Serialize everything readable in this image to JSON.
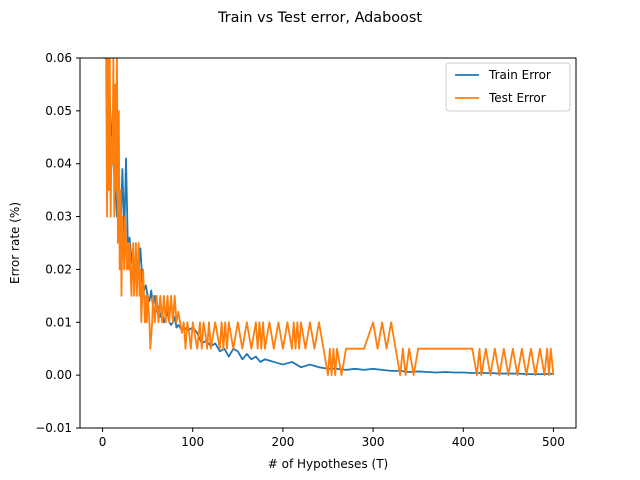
{
  "chart_data": {
    "type": "line",
    "title": "Train vs Test error, Adaboost",
    "xlabel": "# of Hypotheses (T)",
    "ylabel": "Error rate (%)",
    "xlim": [
      -25,
      525
    ],
    "ylim": [
      -0.01,
      0.06
    ],
    "xticks": [
      0,
      100,
      200,
      300,
      400,
      500
    ],
    "yticks": [
      -0.01,
      0.0,
      0.01,
      0.02,
      0.03,
      0.04,
      0.05,
      0.06
    ],
    "ytick_labels": [
      "−0.01",
      "0.00",
      "0.01",
      "0.02",
      "0.03",
      "0.04",
      "0.05",
      "0.06"
    ],
    "grid": false,
    "legend": "top-right",
    "series": [
      {
        "name": "Train Error",
        "color": "#1f77b4",
        "x": [
          1,
          5,
          8,
          10,
          12,
          14,
          16,
          18,
          20,
          22,
          24,
          26,
          28,
          30,
          32,
          34,
          36,
          38,
          40,
          42,
          44,
          46,
          48,
          50,
          52,
          54,
          56,
          58,
          60,
          62,
          64,
          66,
          68,
          70,
          72,
          74,
          76,
          78,
          80,
          82,
          84,
          86,
          88,
          90,
          95,
          100,
          105,
          110,
          115,
          120,
          125,
          130,
          135,
          140,
          145,
          150,
          155,
          160,
          165,
          170,
          175,
          180,
          190,
          200,
          210,
          220,
          230,
          240,
          250,
          260,
          270,
          280,
          290,
          300,
          310,
          320,
          330,
          340,
          350,
          360,
          370,
          380,
          390,
          400,
          410,
          420,
          430,
          440,
          450,
          460,
          470,
          480,
          490,
          500
        ],
        "y": [
          0.06,
          0.06,
          0.052,
          0.045,
          0.04,
          0.036,
          0.03,
          0.033,
          0.028,
          0.039,
          0.026,
          0.041,
          0.025,
          0.026,
          0.022,
          0.02,
          0.021,
          0.019,
          0.02,
          0.024,
          0.018,
          0.016,
          0.017,
          0.015,
          0.014,
          0.016,
          0.013,
          0.015,
          0.012,
          0.013,
          0.011,
          0.012,
          0.01,
          0.011,
          0.012,
          0.01,
          0.0095,
          0.01,
          0.011,
          0.009,
          0.0095,
          0.009,
          0.0085,
          0.009,
          0.0085,
          0.009,
          0.008,
          0.006,
          0.0065,
          0.0055,
          0.006,
          0.0045,
          0.005,
          0.0035,
          0.005,
          0.0045,
          0.003,
          0.004,
          0.003,
          0.0035,
          0.0025,
          0.003,
          0.0025,
          0.002,
          0.0025,
          0.0015,
          0.002,
          0.0015,
          0.0012,
          0.0012,
          0.001,
          0.0012,
          0.001,
          0.0012,
          0.001,
          0.0008,
          0.0008,
          0.0006,
          0.0007,
          0.0006,
          0.0005,
          0.0006,
          0.0005,
          0.0005,
          0.0004,
          0.0004,
          0.0004,
          0.0003,
          0.0003,
          0.0003,
          0.0002,
          0.0002,
          0.0002,
          0.0003
        ]
      },
      {
        "name": "Test Error",
        "color": "#ff7f0e",
        "x": [
          1,
          4,
          5,
          6,
          7,
          8,
          9,
          10,
          11,
          12,
          13,
          14,
          15,
          16,
          17,
          18,
          19,
          20,
          21,
          22,
          23,
          24,
          25,
          26,
          27,
          28,
          29,
          30,
          31,
          32,
          33,
          34,
          35,
          36,
          37,
          38,
          39,
          40,
          41,
          42,
          43,
          44,
          45,
          46,
          47,
          48,
          49,
          50,
          52,
          53,
          55,
          56,
          58,
          60,
          62,
          64,
          66,
          68,
          70,
          72,
          74,
          76,
          78,
          80,
          82,
          84,
          86,
          88,
          90,
          92,
          94,
          96,
          98,
          100,
          105,
          108,
          110,
          112,
          114,
          116,
          118,
          120,
          125,
          130,
          132,
          134,
          136,
          138,
          140,
          145,
          150,
          155,
          160,
          165,
          170,
          172,
          174,
          176,
          178,
          180,
          185,
          190,
          195,
          200,
          205,
          210,
          212,
          214,
          216,
          218,
          220,
          225,
          230,
          235,
          240,
          245,
          248,
          250,
          252,
          254,
          256,
          258,
          260,
          265,
          270,
          280,
          290,
          300,
          305,
          310,
          315,
          320,
          325,
          330,
          333,
          336,
          340,
          345,
          350,
          360,
          370,
          380,
          390,
          400,
          410,
          415,
          418,
          420,
          425,
          430,
          435,
          440,
          445,
          450,
          455,
          460,
          465,
          470,
          475,
          480,
          485,
          490,
          493,
          495,
          497,
          500
        ],
        "y": [
          0.06,
          0.06,
          0.03,
          0.06,
          0.035,
          0.06,
          0.03,
          0.045,
          0.04,
          0.06,
          0.03,
          0.055,
          0.035,
          0.06,
          0.025,
          0.05,
          0.02,
          0.035,
          0.015,
          0.03,
          0.025,
          0.02,
          0.03,
          0.025,
          0.02,
          0.025,
          0.02,
          0.025,
          0.02,
          0.015,
          0.02,
          0.025,
          0.015,
          0.02,
          0.025,
          0.015,
          0.02,
          0.025,
          0.015,
          0.02,
          0.01,
          0.015,
          0.02,
          0.015,
          0.01,
          0.015,
          0.01,
          0.015,
          0.01,
          0.005,
          0.01,
          0.015,
          0.01,
          0.015,
          0.01,
          0.015,
          0.01,
          0.015,
          0.01,
          0.015,
          0.01,
          0.015,
          0.01,
          0.015,
          0.01,
          0.012,
          0.01,
          0.008,
          0.01,
          0.005,
          0.01,
          0.008,
          0.005,
          0.01,
          0.005,
          0.01,
          0.005,
          0.01,
          0.008,
          0.005,
          0.01,
          0.005,
          0.01,
          0.005,
          0.01,
          0.005,
          0.01,
          0.005,
          0.01,
          0.005,
          0.01,
          0.005,
          0.01,
          0.005,
          0.01,
          0.005,
          0.01,
          0.005,
          0.01,
          0.005,
          0.01,
          0.005,
          0.01,
          0.005,
          0.01,
          0.005,
          0.01,
          0.005,
          0.01,
          0.005,
          0.01,
          0.005,
          0.01,
          0.005,
          0.01,
          0.005,
          0.002,
          0.0,
          0.005,
          0.0,
          0.005,
          0.0,
          0.005,
          0.0,
          0.005,
          0.005,
          0.005,
          0.01,
          0.005,
          0.01,
          0.005,
          0.01,
          0.005,
          0.0,
          0.005,
          0.0,
          0.005,
          0.0,
          0.005,
          0.005,
          0.005,
          0.005,
          0.005,
          0.005,
          0.005,
          0.0,
          0.005,
          0.0,
          0.005,
          0.0,
          0.005,
          0.0,
          0.005,
          0.0,
          0.005,
          0.0,
          0.005,
          0.0,
          0.005,
          0.0,
          0.005,
          0.0,
          0.005,
          0.0,
          0.005,
          0.0
        ]
      }
    ]
  }
}
